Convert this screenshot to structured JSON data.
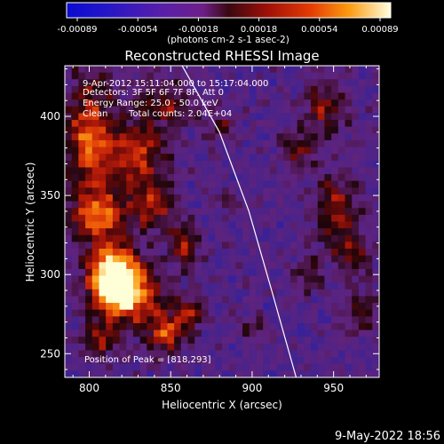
{
  "chart_data": {
    "type": "heatmap",
    "title": "Reconstructed RHESSI Image",
    "xlabel": "Heliocentric X (arcsec)",
    "ylabel": "Heliocentric Y (arcsec)",
    "xlim": [
      785,
      978
    ],
    "ylim": [
      235,
      432
    ],
    "x_ticks": [
      800,
      850,
      900,
      950
    ],
    "y_ticks": [
      250,
      300,
      350,
      400
    ],
    "colorbar": {
      "ticks": [
        "-0.00089",
        "-0.00054",
        "-0.00018",
        "0.00018",
        "0.00054",
        "0.00089"
      ],
      "range": [
        -0.00089,
        0.00089
      ],
      "unit_label": "(photons cm-2 s-1 asec-2)"
    },
    "annotations": {
      "time": "9-Apr-2012 15:11:04.000 to 15:17:04.000",
      "detectors": "Detectors: 3F 5F 6F 7F 8F, Att 0",
      "energy": "Energy Range: 25.0 - 50.0 keV",
      "method": "Clean",
      "counts": "Total counts: 2.04E+04",
      "peak": "Position of Peak = [818,293]"
    },
    "peak": [
      818,
      293
    ],
    "limb_curve": [
      [
        857,
        432
      ],
      [
        880,
        390
      ],
      [
        898,
        340
      ],
      [
        912,
        290
      ],
      [
        927,
        235
      ]
    ],
    "sources": [
      {
        "x": 819,
        "y": 299,
        "sx": 10,
        "sy": 13,
        "amp": 1.0
      },
      {
        "x": 830,
        "y": 283,
        "sx": 15,
        "sy": 12,
        "amp": 0.55
      },
      {
        "x": 848,
        "y": 262,
        "sx": 8,
        "sy": 8,
        "amp": 0.6
      },
      {
        "x": 808,
        "y": 300,
        "sx": 9,
        "sy": 18,
        "amp": 0.45
      },
      {
        "x": 800,
        "y": 388,
        "sx": 9,
        "sy": 24,
        "amp": 0.6
      },
      {
        "x": 828,
        "y": 375,
        "sx": 14,
        "sy": 14,
        "amp": 0.55
      },
      {
        "x": 806,
        "y": 338,
        "sx": 11,
        "sy": 10,
        "amp": 0.65
      },
      {
        "x": 840,
        "y": 343,
        "sx": 9,
        "sy": 9,
        "amp": 0.5
      },
      {
        "x": 858,
        "y": 318,
        "sx": 7,
        "sy": 10,
        "amp": 0.45
      },
      {
        "x": 862,
        "y": 275,
        "sx": 6,
        "sy": 6,
        "amp": 0.45
      },
      {
        "x": 806,
        "y": 258,
        "sx": 8,
        "sy": 8,
        "amp": 0.4
      },
      {
        "x": 848,
        "y": 408,
        "sx": 10,
        "sy": 10,
        "amp": 0.4
      },
      {
        "x": 880,
        "y": 393,
        "sx": 6,
        "sy": 8,
        "amp": 0.3
      },
      {
        "x": 945,
        "y": 405,
        "sx": 10,
        "sy": 12,
        "amp": 0.4
      },
      {
        "x": 928,
        "y": 378,
        "sx": 8,
        "sy": 8,
        "amp": 0.35
      },
      {
        "x": 952,
        "y": 342,
        "sx": 10,
        "sy": 16,
        "amp": 0.45
      },
      {
        "x": 962,
        "y": 312,
        "sx": 8,
        "sy": 10,
        "amp": 0.35
      },
      {
        "x": 935,
        "y": 300,
        "sx": 7,
        "sy": 9,
        "amp": 0.3
      },
      {
        "x": 968,
        "y": 275,
        "sx": 7,
        "sy": 10,
        "amp": 0.35
      },
      {
        "x": 900,
        "y": 268,
        "sx": 6,
        "sy": 6,
        "amp": 0.25
      },
      {
        "x": 885,
        "y": 345,
        "sx": 5,
        "sy": 5,
        "amp": 0.2
      }
    ]
  },
  "footer": {
    "date": "9-May-2022 18:56"
  }
}
